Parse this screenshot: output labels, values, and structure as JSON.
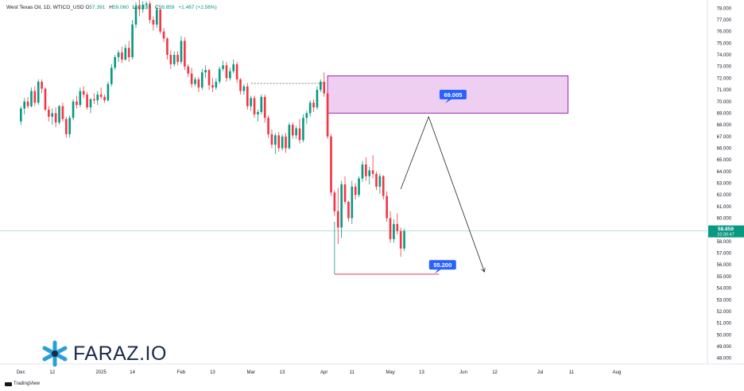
{
  "header": {
    "title": "West Texas Oil, 1D, WTICO_USD",
    "open_label": "O",
    "open": "57.391",
    "high_label": "H",
    "high": "59.060",
    "low_label": "L",
    "low": "57.239",
    "close_label": "C",
    "close": "58.859",
    "change": "+1.467 (+2.56%)"
  },
  "brand": {
    "logo_text": "FARAZ.IO",
    "footer": "TradingView",
    "accent": "#2a9fd6"
  },
  "colors": {
    "up": "#089981",
    "down": "#f23645",
    "zone_fill": "#ecc7ee",
    "zone_border": "#9c27b0",
    "callout": "#2962ff"
  },
  "chart_data": {
    "type": "candlestick",
    "y_range": [
      47.5,
      78.5
    ],
    "x_range": [
      -6,
      197
    ],
    "y_ticks": [
      48,
      49,
      50,
      51,
      52,
      53,
      54,
      55,
      56,
      57,
      58,
      59,
      60,
      61,
      62,
      63,
      64,
      65,
      66,
      67,
      68,
      69,
      70,
      71,
      72,
      73,
      74,
      75,
      76,
      77,
      78
    ],
    "x_ticks": [
      {
        "i": 0,
        "label": "Dec"
      },
      {
        "i": 9,
        "label": "12"
      },
      {
        "i": 23,
        "label": "2025"
      },
      {
        "i": 32,
        "label": "14"
      },
      {
        "i": 46,
        "label": "Feb"
      },
      {
        "i": 55,
        "label": "13"
      },
      {
        "i": 66,
        "label": "Mar"
      },
      {
        "i": 75,
        "label": "13"
      },
      {
        "i": 87,
        "label": "Apr"
      },
      {
        "i": 95,
        "label": "11"
      },
      {
        "i": 106,
        "label": "May"
      },
      {
        "i": 115,
        "label": "13"
      },
      {
        "i": 127,
        "label": "Jun"
      },
      {
        "i": 136,
        "label": "12"
      },
      {
        "i": 149,
        "label": "Jul"
      },
      {
        "i": 158,
        "label": "11"
      },
      {
        "i": 171,
        "label": "Aug"
      }
    ],
    "candles": [
      [
        68.3,
        69.6,
        68.0,
        69.4
      ],
      [
        69.4,
        70.3,
        68.9,
        70.0
      ],
      [
        70.0,
        70.4,
        69.4,
        69.6
      ],
      [
        69.6,
        71.2,
        69.5,
        70.9
      ],
      [
        70.9,
        71.3,
        69.6,
        69.9
      ],
      [
        69.9,
        71.9,
        69.7,
        71.7
      ],
      [
        71.7,
        71.9,
        70.7,
        71.1
      ],
      [
        71.1,
        71.2,
        69.2,
        69.3
      ],
      [
        69.3,
        69.6,
        68.3,
        68.7
      ],
      [
        68.7,
        69.4,
        68.0,
        69.0
      ],
      [
        69.0,
        69.5,
        67.8,
        68.2
      ],
      [
        68.2,
        69.7,
        68.0,
        69.6
      ],
      [
        69.6,
        69.9,
        68.3,
        68.5
      ],
      [
        68.5,
        68.7,
        66.9,
        67.2
      ],
      [
        67.2,
        68.8,
        66.9,
        68.6
      ],
      [
        68.6,
        70.2,
        68.4,
        70.0
      ],
      [
        70.0,
        70.5,
        69.4,
        69.7
      ],
      [
        69.7,
        71.2,
        69.5,
        70.9
      ],
      [
        70.9,
        71.3,
        70.3,
        70.6
      ],
      [
        70.6,
        70.8,
        69.3,
        69.5
      ],
      [
        69.5,
        70.3,
        69.0,
        70.2
      ],
      [
        70.2,
        70.7,
        69.8,
        70.1
      ],
      [
        70.1,
        70.9,
        69.7,
        70.6
      ],
      [
        70.6,
        71.2,
        70.2,
        70.4
      ],
      [
        70.4,
        70.6,
        69.9,
        70.1
      ],
      [
        70.1,
        71.7,
        70.0,
        71.5
      ],
      [
        71.5,
        73.2,
        71.3,
        72.9
      ],
      [
        72.9,
        74.0,
        72.7,
        73.8
      ],
      [
        73.8,
        74.4,
        73.4,
        74.2
      ],
      [
        74.2,
        74.7,
        73.3,
        73.6
      ],
      [
        73.6,
        74.9,
        73.5,
        74.6
      ],
      [
        74.6,
        75.2,
        73.4,
        73.8
      ],
      [
        73.8,
        77.0,
        73.6,
        76.6
      ],
      [
        76.6,
        78.5,
        76.3,
        78.2
      ],
      [
        78.2,
        79.0,
        77.3,
        77.9
      ],
      [
        77.9,
        78.6,
        77.6,
        78.3
      ],
      [
        78.3,
        78.6,
        77.9,
        78.4
      ],
      [
        78.4,
        78.6,
        76.7,
        77.0
      ],
      [
        77.0,
        77.3,
        76.1,
        76.6
      ],
      [
        76.6,
        78.1,
        76.3,
        77.9
      ],
      [
        77.9,
        78.0,
        75.8,
        76.0
      ],
      [
        76.0,
        76.3,
        75.1,
        75.4
      ],
      [
        75.4,
        75.5,
        73.6,
        74.0
      ],
      [
        74.0,
        74.4,
        72.8,
        73.2
      ],
      [
        73.2,
        74.3,
        73.0,
        74.0
      ],
      [
        74.0,
        74.3,
        73.1,
        73.4
      ],
      [
        73.4,
        75.6,
        73.2,
        75.2
      ],
      [
        75.2,
        75.5,
        72.7,
        73.0
      ],
      [
        73.0,
        73.2,
        72.1,
        72.4
      ],
      [
        72.4,
        72.9,
        71.2,
        71.5
      ],
      [
        71.5,
        72.1,
        71.3,
        71.9
      ],
      [
        71.9,
        72.1,
        70.8,
        71.2
      ],
      [
        71.2,
        72.8,
        71.0,
        72.5
      ],
      [
        72.5,
        73.1,
        72.0,
        72.7
      ],
      [
        72.7,
        72.8,
        71.0,
        71.4
      ],
      [
        71.4,
        72.0,
        70.8,
        71.2
      ],
      [
        71.2,
        72.0,
        71.0,
        71.7
      ],
      [
        71.7,
        73.0,
        71.5,
        72.8
      ],
      [
        72.8,
        73.5,
        72.6,
        73.1
      ],
      [
        73.1,
        73.4,
        71.7,
        72.0
      ],
      [
        72.0,
        72.9,
        71.8,
        72.6
      ],
      [
        72.6,
        73.6,
        72.4,
        73.2
      ],
      [
        73.2,
        73.4,
        71.6,
        71.9
      ],
      [
        71.9,
        72.0,
        70.6,
        70.9
      ],
      [
        70.9,
        71.5,
        70.6,
        71.3
      ],
      [
        71.3,
        71.6,
        69.3,
        69.6
      ],
      [
        69.6,
        70.5,
        69.2,
        70.3
      ],
      [
        70.3,
        70.5,
        68.6,
        68.9
      ],
      [
        68.9,
        69.3,
        68.3,
        69.1
      ],
      [
        69.1,
        70.6,
        68.9,
        70.4
      ],
      [
        70.4,
        70.6,
        68.2,
        68.6
      ],
      [
        68.6,
        68.8,
        66.9,
        67.2
      ],
      [
        67.2,
        67.6,
        66.0,
        66.3
      ],
      [
        66.3,
        67.3,
        65.5,
        67.1
      ],
      [
        67.1,
        67.4,
        65.7,
        66.0
      ],
      [
        66.0,
        67.2,
        65.8,
        67.0
      ],
      [
        67.0,
        67.3,
        65.6,
        66.0
      ],
      [
        66.0,
        68.2,
        65.9,
        68.0
      ],
      [
        68.0,
        68.2,
        66.8,
        67.1
      ],
      [
        67.1,
        67.9,
        66.8,
        67.7
      ],
      [
        67.7,
        68.5,
        66.4,
        66.7
      ],
      [
        66.7,
        68.9,
        66.5,
        68.6
      ],
      [
        68.6,
        69.2,
        68.1,
        69.0
      ],
      [
        69.0,
        70.1,
        68.7,
        69.9
      ],
      [
        69.9,
        70.2,
        69.1,
        69.5
      ],
      [
        69.5,
        71.3,
        69.3,
        71.0
      ],
      [
        71.0,
        71.9,
        70.8,
        71.7
      ],
      [
        71.7,
        72.5,
        70.4,
        70.7
      ],
      [
        70.7,
        70.9,
        66.8,
        67.0
      ],
      [
        67.0,
        67.2,
        61.9,
        62.2
      ],
      [
        62.2,
        62.4,
        60.2,
        60.6
      ],
      [
        60.6,
        62.6,
        57.8,
        59.2
      ],
      [
        59.2,
        63.2,
        58.3,
        62.9
      ],
      [
        62.9,
        63.6,
        61.2,
        61.4
      ],
      [
        61.4,
        61.5,
        59.7,
        60.0
      ],
      [
        60.0,
        63.2,
        59.5,
        62.7
      ],
      [
        62.7,
        63.0,
        61.6,
        62.0
      ],
      [
        62.0,
        63.6,
        61.8,
        63.4
      ],
      [
        63.4,
        64.9,
        63.1,
        64.6
      ],
      [
        64.6,
        65.2,
        63.2,
        63.6
      ],
      [
        63.6,
        64.4,
        62.9,
        64.1
      ],
      [
        64.1,
        65.4,
        63.4,
        63.8
      ],
      [
        63.8,
        64.0,
        62.4,
        62.7
      ],
      [
        62.7,
        63.8,
        62.1,
        63.6
      ],
      [
        63.6,
        63.7,
        61.6,
        61.9
      ],
      [
        61.9,
        62.3,
        59.7,
        60.0
      ],
      [
        60.0,
        60.6,
        57.9,
        58.2
      ],
      [
        58.2,
        59.9,
        57.9,
        59.5
      ],
      [
        59.5,
        60.4,
        58.6,
        58.9
      ],
      [
        58.9,
        59.2,
        56.7,
        57.4
      ],
      [
        57.4,
        59.1,
        57.2,
        58.9
      ]
    ],
    "demand_zone": {
      "x0": 88,
      "x1": 157,
      "y0": 69.005,
      "y1": 72.2
    },
    "support_line": {
      "x0": 90,
      "x1": 120,
      "y": 55.2
    },
    "prior_high_line": {
      "x0": 66,
      "x1": 88,
      "y": 71.55
    },
    "projection_path": [
      {
        "i": 109,
        "y": 62.5
      },
      {
        "i": 117,
        "y": 68.7
      },
      {
        "i": 133,
        "y": 55.4
      }
    ],
    "callouts": [
      {
        "label": "69.005",
        "i": 124,
        "y": 70.6
      },
      {
        "label": "55.200",
        "i": 121,
        "y": 56.0
      }
    ],
    "last_price": {
      "value": "58.859",
      "sub": "10:30:47"
    }
  }
}
